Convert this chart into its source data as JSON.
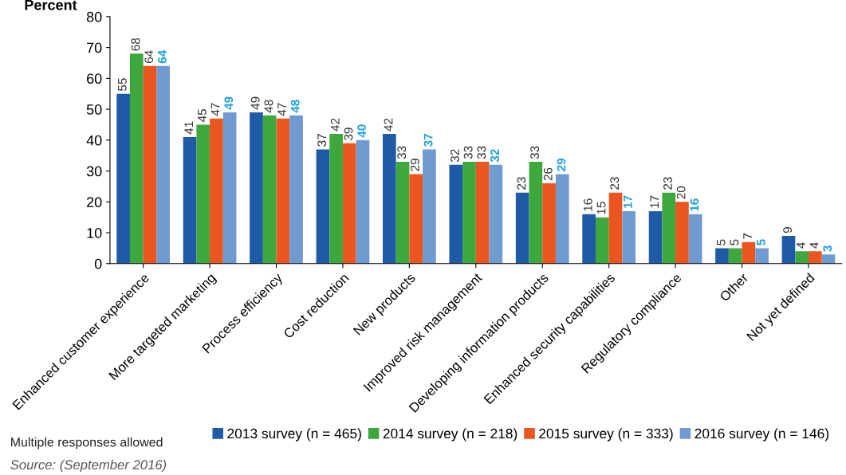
{
  "chart_data": {
    "type": "bar",
    "ylabel": "Percent",
    "categories": [
      "Enhanced customer experience",
      "More targeted marketing",
      "Process efficiency",
      "Cost reduction",
      "New products",
      "Improved risk management",
      "Developing information products",
      "Enhanced security capabilities",
      "Regulatory compliance",
      "Other",
      "Not yet defined"
    ],
    "series": [
      {
        "name": "2013 survey (n = 465)",
        "color": "#1f5aa6",
        "values": [
          55,
          41,
          49,
          37,
          42,
          32,
          23,
          16,
          17,
          5,
          9
        ]
      },
      {
        "name": "2014 survey (n = 218)",
        "color": "#3ea83e",
        "values": [
          68,
          45,
          48,
          42,
          33,
          33,
          33,
          15,
          23,
          5,
          4
        ]
      },
      {
        "name": "2015 survey (n = 333)",
        "color": "#ea5520",
        "values": [
          64,
          47,
          47,
          39,
          29,
          33,
          26,
          23,
          20,
          7,
          4
        ]
      },
      {
        "name": "2016 survey (n = 146)",
        "color": "#6f9bd1",
        "values": [
          64,
          49,
          48,
          40,
          37,
          32,
          29,
          17,
          16,
          5,
          3
        ]
      }
    ],
    "ylim": [
      0,
      80
    ],
    "yticks": [
      0,
      10,
      20,
      30,
      40,
      50,
      60,
      70,
      80
    ],
    "grid": false,
    "legend": "bottom",
    "data_labels": true,
    "annotations": [
      "Multiple responses allowed",
      "Source: (September 2016)"
    ]
  }
}
